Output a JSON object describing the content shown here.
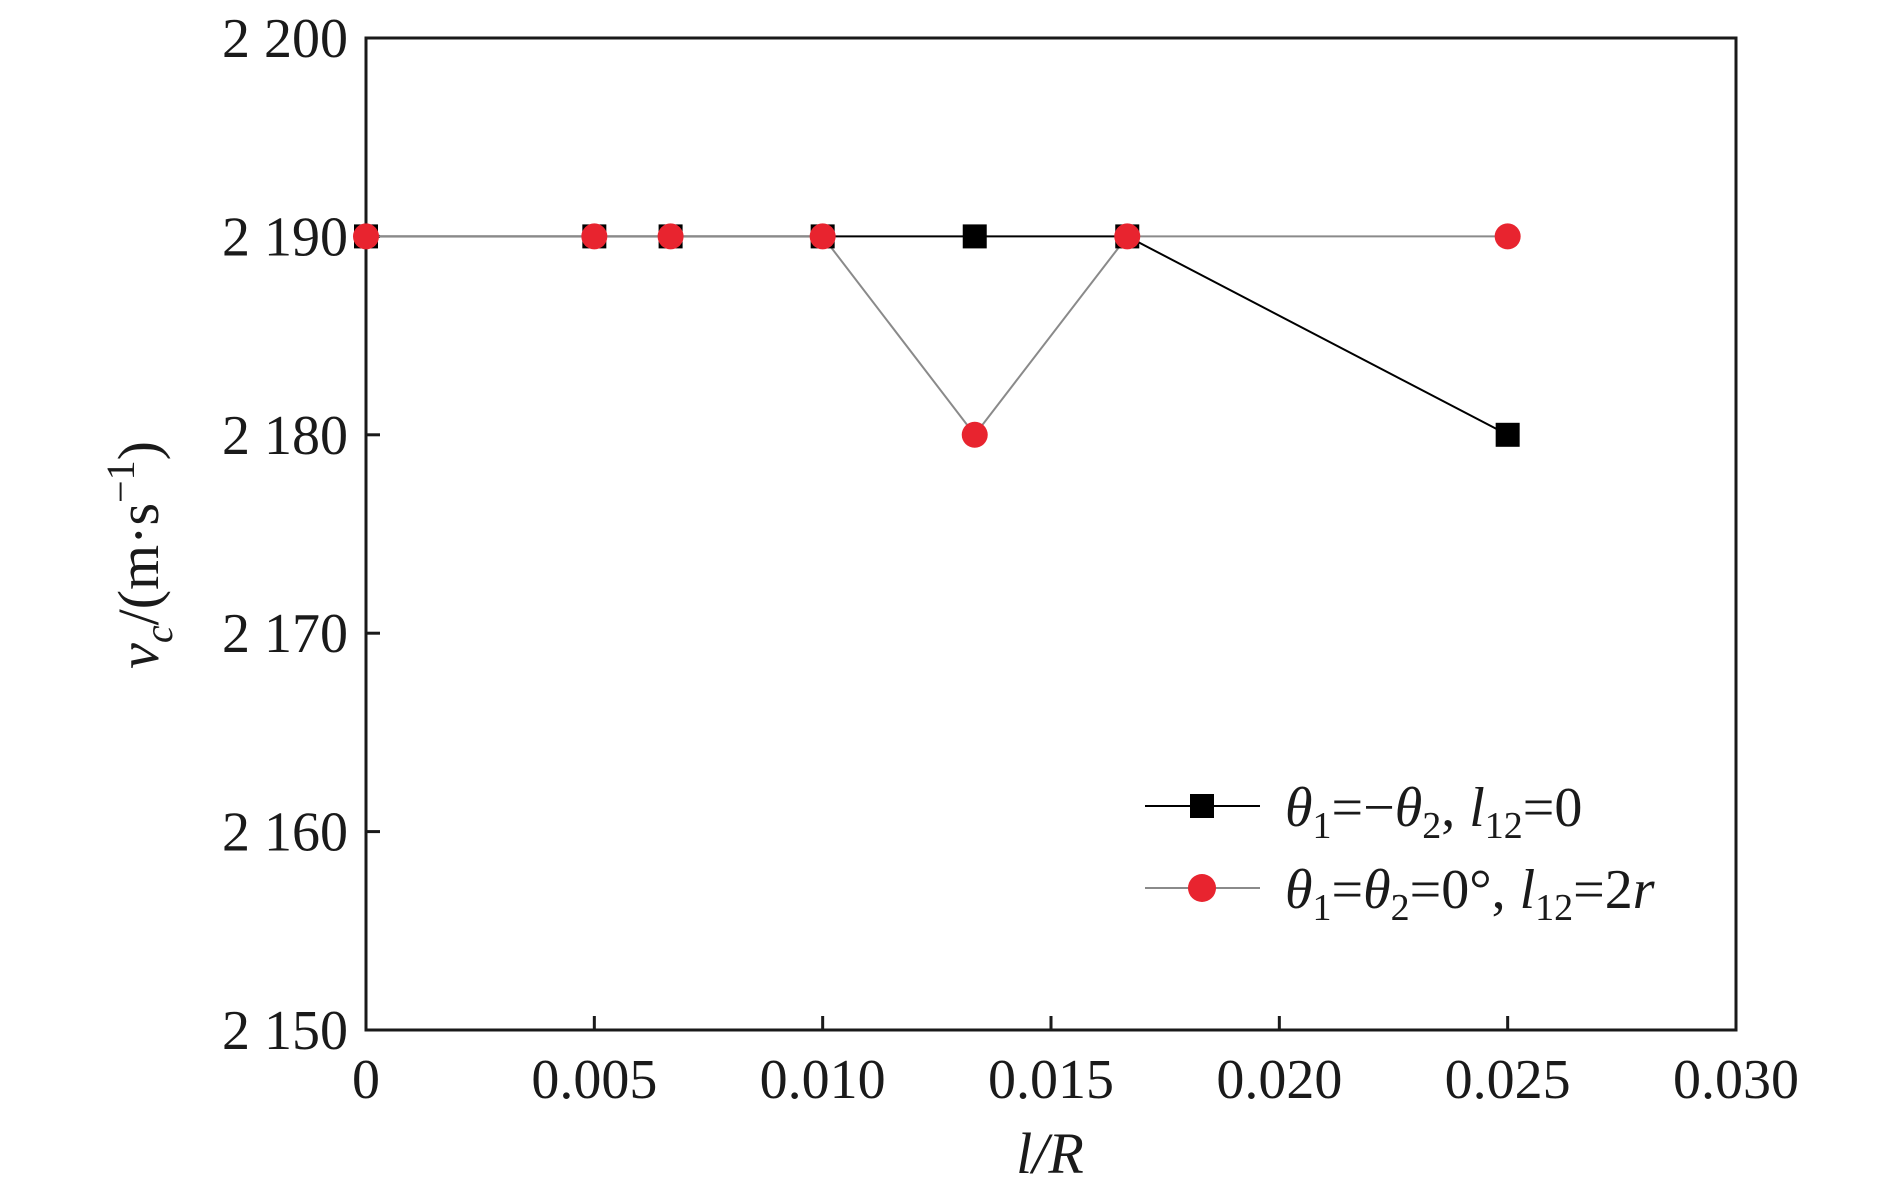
{
  "chart_data": {
    "type": "line",
    "xlabel": "l/R",
    "ylabel": "v_c/(m·s⁻¹)",
    "ylabel_parts": {
      "var": "v",
      "sub": "c",
      "unit_open": "/(m·s",
      "sup": "−1",
      "unit_close": ")"
    },
    "xlim": [
      0,
      0.03
    ],
    "ylim": [
      2150,
      2200
    ],
    "xticks": [
      0,
      0.005,
      0.01,
      0.015,
      0.02,
      0.025,
      0.03
    ],
    "xtick_labels": [
      "0",
      "0.005",
      "0.010",
      "0.015",
      "0.020",
      "0.025",
      "0.030"
    ],
    "yticks": [
      2150,
      2160,
      2170,
      2180,
      2190,
      2200
    ],
    "ytick_labels": [
      "2 150",
      "2 160",
      "2 170",
      "2 180",
      "2 190",
      "2 200"
    ],
    "grid": false,
    "legend_position": "bottom-right",
    "series": [
      {
        "name": "θ1=−θ2, l12=0",
        "legend_parts": {
          "a": "θ",
          "a_sub": "1",
          "b": "=−",
          "c": "θ",
          "c_sub": "2",
          "d": ", ",
          "e": "l",
          "e_sub": "12",
          "f": "=0"
        },
        "color": "#000000",
        "line_color": "#000000",
        "marker": "square",
        "x": [
          0,
          0.005,
          0.00667,
          0.01,
          0.01333,
          0.01667,
          0.025
        ],
        "y": [
          2190,
          2190,
          2190,
          2190,
          2190,
          2190,
          2180
        ]
      },
      {
        "name": "θ1=θ2=0°, l12=2r",
        "legend_parts": {
          "a": "θ",
          "a_sub": "1",
          "b": "=",
          "c": "θ",
          "c_sub": "2",
          "d": "=0°, ",
          "e": "l",
          "e_sub": "12",
          "f": "=2",
          "g": "r"
        },
        "color": "#e8242f",
        "line_color": "#8a8a8a",
        "marker": "circle",
        "x": [
          0,
          0.005,
          0.00667,
          0.01,
          0.01333,
          0.01667,
          0.025
        ],
        "y": [
          2190,
          2190,
          2190,
          2190,
          2180,
          2190,
          2190
        ]
      }
    ]
  }
}
